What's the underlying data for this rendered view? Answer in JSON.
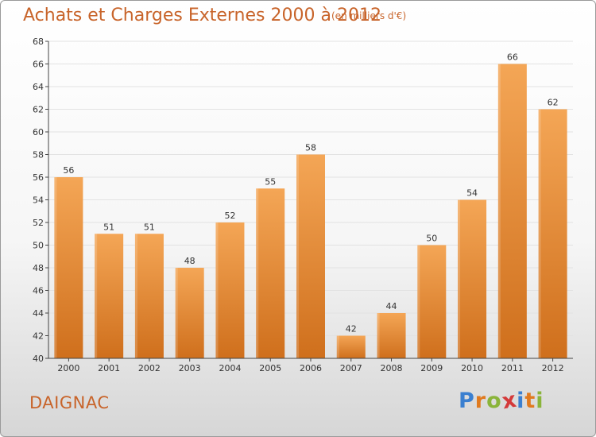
{
  "header": {
    "title": "Achats et Charges Externes 2000 à 2012",
    "subtitle": "(en milliers d'€)"
  },
  "footer": {
    "city": "DAIGNAC",
    "logo_letters": [
      "P",
      "r",
      "o",
      "x",
      "i",
      "t",
      "i"
    ],
    "logo_colors": [
      "#3a7fd0",
      "#e07a1f",
      "#8ab43a",
      "#d43a3a",
      "#3a7fd0",
      "#e07a1f",
      "#8ab43a"
    ]
  },
  "colors": {
    "bar_top": "#f4a656",
    "bar_bottom": "#cf6f1c",
    "axis": "#444444",
    "grid": "#e2e2e2"
  },
  "chart_data": {
    "type": "bar",
    "categories": [
      "2000",
      "2001",
      "2002",
      "2003",
      "2004",
      "2005",
      "2006",
      "2007",
      "2008",
      "2009",
      "2010",
      "2011",
      "2012"
    ],
    "values": [
      56,
      51,
      51,
      48,
      52,
      55,
      58,
      42,
      44,
      50,
      54,
      66,
      62
    ],
    "ylim": [
      40,
      68
    ],
    "yticks": [
      40,
      42,
      44,
      46,
      48,
      50,
      52,
      54,
      56,
      58,
      60,
      62,
      64,
      66,
      68
    ],
    "grid": true,
    "legend": "none"
  }
}
